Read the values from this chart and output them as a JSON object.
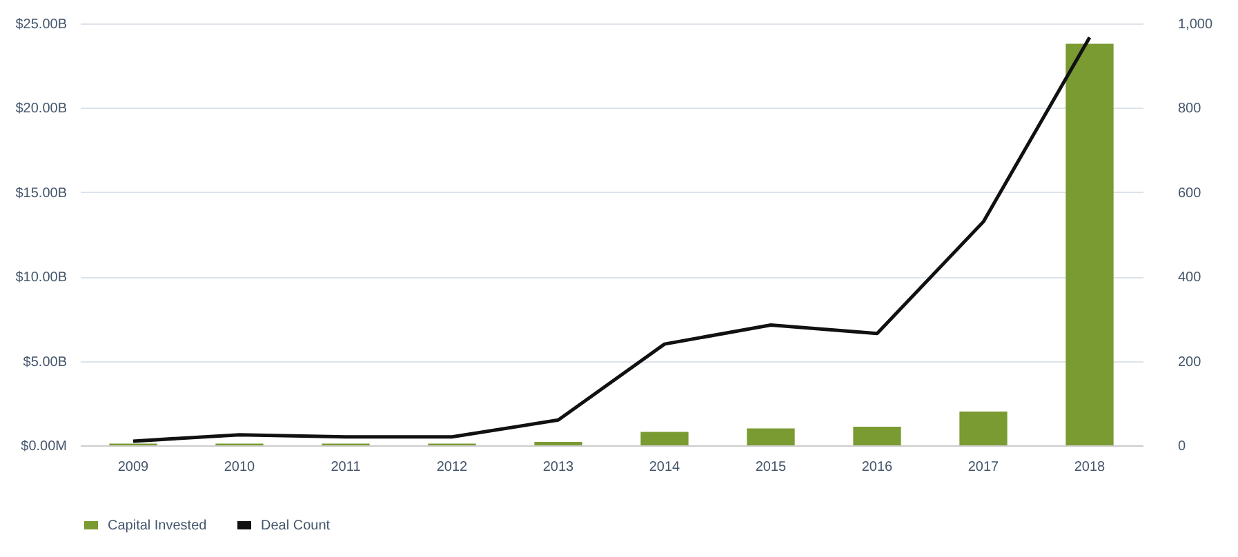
{
  "chart_data": {
    "type": "bar",
    "categories": [
      "2009",
      "2010",
      "2011",
      "2012",
      "2013",
      "2014",
      "2015",
      "2016",
      "2017",
      "2018"
    ],
    "series": [
      {
        "name": "Capital Invested",
        "color": "#7a9a32",
        "values": [
          0.1,
          0.1,
          0.1,
          0.1,
          0.2,
          0.8,
          1.0,
          1.1,
          2.0,
          23.8
        ]
      },
      {
        "name": "Deal Count",
        "type": "line",
        "axis": "y2",
        "color": "#111111",
        "values": [
          10,
          25,
          20,
          20,
          60,
          240,
          285,
          265,
          530,
          967
        ]
      }
    ],
    "ylim": [
      0,
      25
    ],
    "yticks": [
      {
        "value": 0,
        "label": "$0.00M"
      },
      {
        "value": 5,
        "label": "$5.00B"
      },
      {
        "value": 10,
        "label": "$10.00B"
      },
      {
        "value": 15,
        "label": "$15.00B"
      },
      {
        "value": 20,
        "label": "$20.00B"
      },
      {
        "value": 25,
        "label": "$25.00B"
      }
    ],
    "y2lim": [
      0,
      1000
    ],
    "y2ticks": [
      0,
      200,
      400,
      600,
      800,
      {
        "value": 1000,
        "label": "1,000"
      }
    ],
    "grid": "y",
    "legend": "bottom"
  }
}
